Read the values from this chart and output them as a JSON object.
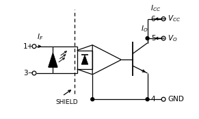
{
  "bg_color": "#ffffff",
  "line_color": "#000000",
  "fig_width": 2.91,
  "fig_height": 1.74,
  "dpi": 100
}
